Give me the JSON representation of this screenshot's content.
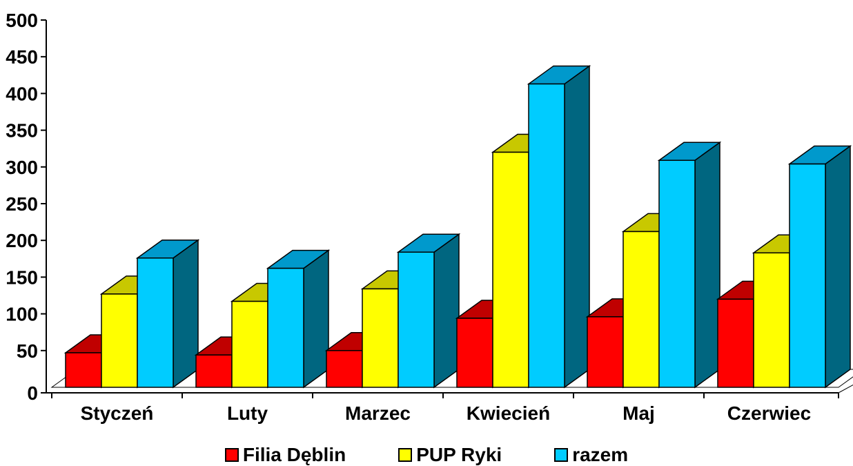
{
  "chart_data": {
    "type": "bar",
    "categories": [
      "Styczeń",
      "Luty",
      "Marzec",
      "Kwiecień",
      "Maj",
      "Czerwiec"
    ],
    "series": [
      {
        "name": "Filia Dęblin",
        "values": [
          47,
          44,
          50,
          94,
          96,
          120
        ],
        "color": "#ff0000",
        "top_color": "#c00000"
      },
      {
        "name": "PUP Ryki",
        "values": [
          127,
          117,
          134,
          320,
          212,
          183
        ],
        "color": "#ffff00",
        "top_color": "#c8c800"
      },
      {
        "name": "razem",
        "values": [
          176,
          162,
          184,
          413,
          309,
          304
        ],
        "color": "#00ccff",
        "top_color": "#0099cc",
        "side_color": "#006680"
      }
    ],
    "ylim": [
      0,
      500
    ],
    "yticks": [
      "0",
      "50",
      "100",
      "150",
      "200",
      "250",
      "300",
      "350",
      "400",
      "450",
      "500"
    ],
    "grid": false,
    "legend_position": "bottom",
    "style": "3d-clustered-column"
  }
}
